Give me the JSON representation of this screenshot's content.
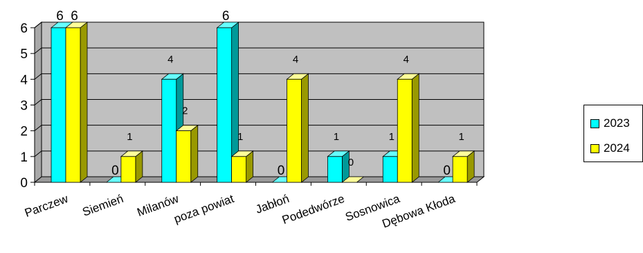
{
  "chart_data": {
    "type": "bar",
    "categories": [
      "Parczew",
      "Siemień",
      "Milanów",
      "poza powiat",
      "Jabłoń",
      "Podedwórze",
      "Sosnowica",
      "Dębowa Kłoda"
    ],
    "series": [
      {
        "name": "2023",
        "values": [
          6,
          0,
          4,
          6,
          0,
          1,
          1,
          0
        ],
        "color": "#00ffff",
        "side_color": "#009999",
        "top_color": "#66ffff"
      },
      {
        "name": "2024",
        "values": [
          6,
          1,
          2,
          1,
          4,
          0,
          4,
          1
        ],
        "color": "#ffff00",
        "side_color": "#999900",
        "top_color": "#ffff99"
      }
    ],
    "ylim": [
      0,
      6
    ],
    "yticks": [
      "0",
      "1",
      "2",
      "3",
      "4",
      "5",
      "6"
    ],
    "grid": true,
    "legend_position": "right",
    "background": "#c0c0c0"
  }
}
